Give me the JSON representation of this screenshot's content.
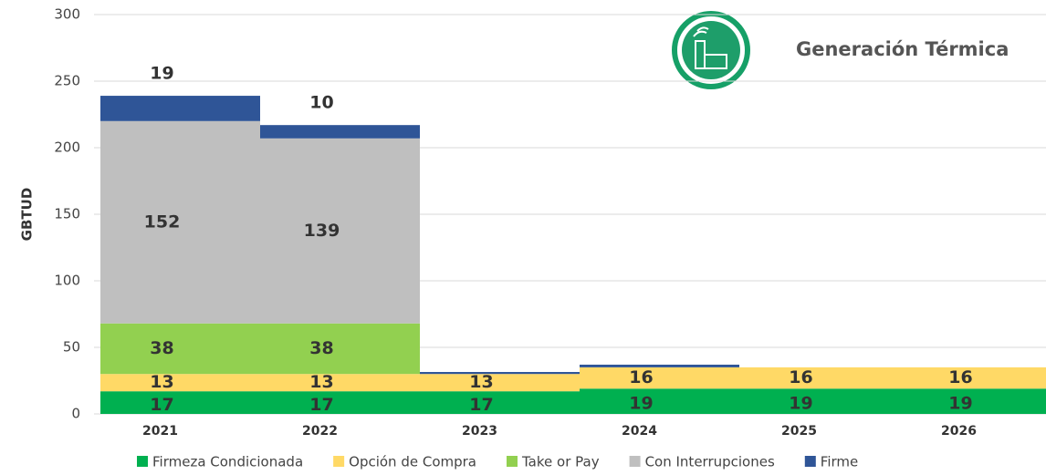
{
  "chart_data": {
    "type": "stacked_area",
    "title": "Generación Térmica",
    "y_label": "GBTUD",
    "categories": [
      "2021",
      "2022",
      "2023",
      "2024",
      "2025",
      "2026"
    ],
    "series": [
      {
        "name": "Firmeza Condicionada",
        "color": "#00b050",
        "label_color": "#ffffff",
        "values": [
          17,
          17,
          17,
          19,
          19,
          19
        ]
      },
      {
        "name": "Opción de Compra",
        "color": "#ffd966",
        "label_color": "#000000",
        "values": [
          13,
          13,
          13,
          16,
          16,
          16
        ]
      },
      {
        "name": "Take or Pay",
        "color": "#92d050",
        "label_color": "#ffffff",
        "values": [
          38,
          38,
          null,
          null,
          null,
          null
        ]
      },
      {
        "name": "Con Interrupciones",
        "color": "#bfbfbf",
        "label_color": "#ffffff",
        "values": [
          152,
          139,
          null,
          null,
          null,
          null
        ]
      },
      {
        "name": "Firme",
        "color": "#2f5597",
        "label_color": "#1f3864",
        "values": [
          19,
          10,
          1.5,
          2,
          null,
          null
        ]
      }
    ],
    "ylim": [
      0,
      300
    ],
    "yticks": [
      0,
      50,
      100,
      150,
      200,
      250,
      300
    ],
    "grid": true
  }
}
